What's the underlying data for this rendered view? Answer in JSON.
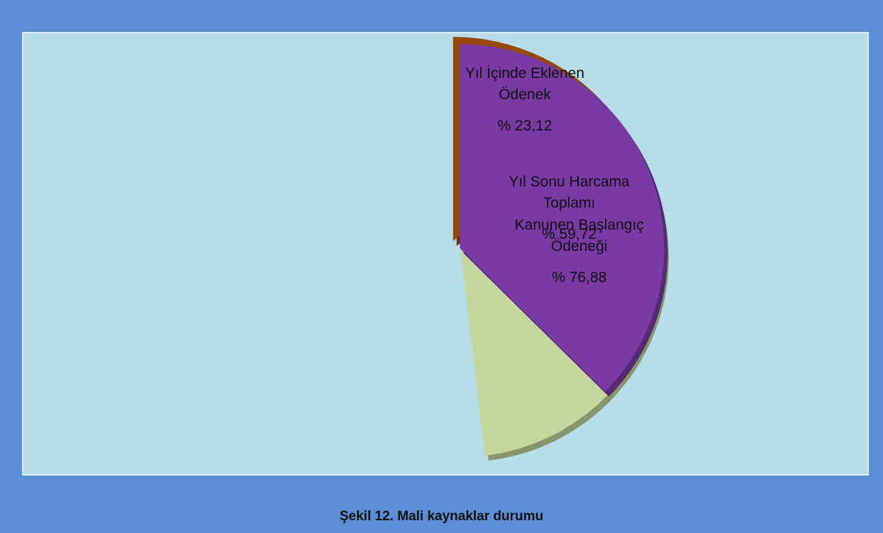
{
  "chart_data": {
    "type": "pie",
    "title": "Şekil 12. Mali kaynaklar durumu",
    "categories": [
      "Kanunen Başlangıç Ödeneği",
      "Yıl İçinde Eklenen Ödenek",
      "Yıl Sonu Harcama Toplamı"
    ],
    "values": [
      76.88,
      23.12,
      59.72
    ],
    "value_labels": [
      "% 76,88",
      "% 23,12",
      "% 59,72"
    ],
    "colors": [
      "#c3d69b",
      "#984807",
      "#7a3aa6"
    ]
  }
}
